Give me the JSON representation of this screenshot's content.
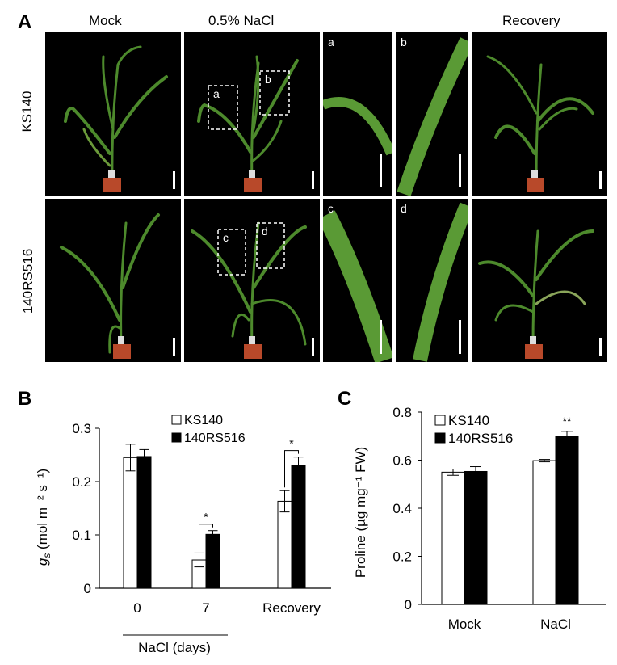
{
  "panel_a": {
    "letter": "A",
    "columns": [
      "Mock",
      "0.5% NaCl",
      "Recovery"
    ],
    "rows": [
      "KS140",
      "140RS516"
    ],
    "insets": [
      "a",
      "b",
      "c",
      "d"
    ]
  },
  "chart_data": [
    {
      "type": "bar",
      "panel": "B",
      "ylabel": "g_s (mol m⁻² s⁻¹)",
      "ylabel_main": "g",
      "ylabel_sub": "s",
      "ylabel_rest": " (mol m⁻² s⁻¹)",
      "xlabel": "NaCl (days)",
      "categories": [
        "0",
        "7",
        "Recovery"
      ],
      "ylim": [
        0,
        0.3
      ],
      "yticks": [
        "0",
        "0.1",
        "0.2",
        "0.3"
      ],
      "legend": [
        "KS140",
        "140RS516"
      ],
      "series": [
        {
          "name": "KS140",
          "color": "#ffffff",
          "values": [
            0.245,
            0.053,
            0.163
          ],
          "errors": [
            0.025,
            0.013,
            0.02
          ]
        },
        {
          "name": "140RS516",
          "color": "#000000",
          "values": [
            0.247,
            0.101,
            0.231
          ],
          "errors": [
            0.013,
            0.007,
            0.015
          ]
        }
      ],
      "significance": [
        {
          "category": "7",
          "label": "*"
        },
        {
          "category": "Recovery",
          "label": "*"
        }
      ]
    },
    {
      "type": "bar",
      "panel": "C",
      "ylabel": "Proline (µg mg⁻¹ FW)",
      "categories": [
        "Mock",
        "NaCl"
      ],
      "ylim": [
        0,
        0.8
      ],
      "yticks": [
        "0",
        "0.2",
        "0.4",
        "0.6",
        "0.8"
      ],
      "legend": [
        "KS140",
        "140RS516"
      ],
      "series": [
        {
          "name": "KS140",
          "color": "#ffffff",
          "values": [
            0.55,
            0.598
          ],
          "errors": [
            0.013,
            0.005
          ]
        },
        {
          "name": "140RS516",
          "color": "#000000",
          "values": [
            0.553,
            0.698
          ],
          "errors": [
            0.02,
            0.022
          ]
        }
      ],
      "significance": [
        {
          "category": "NaCl",
          "label": "**"
        }
      ]
    }
  ]
}
